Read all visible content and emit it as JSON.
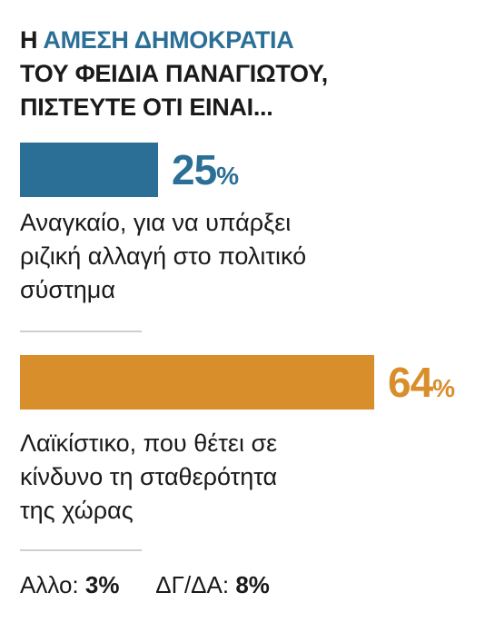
{
  "title": {
    "prefix": "Η ",
    "highlight": "ΑΜΕΣΗ ΔΗΜΟΚΡΑΤΙΑ",
    "line2": "ΤΟΥ ΦΕΙΔΙΑ ΠΑΝΑΓΙΩΤΟΥ,",
    "line3": "ΠΙΣΤΕΥΤΕ ΟΤΙ ΕΙΝΑΙ..."
  },
  "colors": {
    "blue": "#2b6f96",
    "orange": "#d98e2c",
    "text": "#1a1a1a",
    "divider": "#cfcfcf"
  },
  "chart_data": {
    "type": "bar",
    "orientation": "horizontal",
    "title": "Η ΑΜΕΣΗ ΔΗΜΟΚΡΑΤΙΑ ΤΟΥ ΦΕΙΔΙΑ ΠΑΝΑΓΙΩΤΟΥ, ΠΙΣΤΕΥΤΕ ΟΤΙ ΕΙΝΑΙ...",
    "categories": [
      "Αναγκαίο, για να υπάρξει ριζική αλλαγή στο πολιτικό σύστημα",
      "Λαϊκίστικο, που θέτει σε κίνδυνο τη σταθερότητα της χώρας"
    ],
    "values": [
      25,
      64
    ],
    "value_labels": [
      "25",
      "64"
    ],
    "unit": "%",
    "xlim": [
      0,
      64
    ],
    "colors": [
      "#2b6f96",
      "#d98e2c"
    ],
    "label_lines": [
      [
        "Αναγκαίο, για να υπάρξει",
        "ριζική αλλαγή στο πολιτικό",
        "σύστημα"
      ],
      [
        "Λαϊκίστικο, που θέτει σε",
        "κίνδυνο τη σταθερότητα",
        "της χώρας"
      ]
    ],
    "other": [
      {
        "label": "Αλλο:",
        "value": "3%"
      },
      {
        "label": "ΔΓ/ΔΑ:",
        "value": "8%"
      }
    ]
  }
}
